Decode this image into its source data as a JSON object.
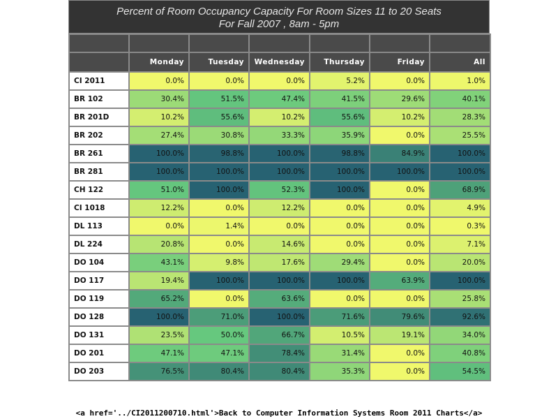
{
  "title_line1": "Percent of Room Occupancy Capacity For Room Sizes 11 to 20 Seats",
  "title_line2": "For Fall 2007  , 8am - 5pm",
  "footer_text": "<a href='../CI2011200710.html'>Back to Computer Information Systems Room 2011 Charts</a>",
  "colors": {
    "low": "#f0f86c",
    "mid": "#66c87e",
    "high": "#276272",
    "border": "#8a8a8a",
    "header_bg": "#4a4a4a",
    "title_bg": "#333333"
  },
  "chart_data": {
    "type": "heatmap",
    "title": "Percent of Room Occupancy Capacity For Room Sizes 11 to 20 Seats",
    "subtitle": "For Fall 2007  , 8am - 5pm",
    "columns": [
      "Monday",
      "Tuesday",
      "Wednesday",
      "Thursday",
      "Friday",
      "All"
    ],
    "rows": [
      {
        "room": "CI 2011",
        "values": [
          0.0,
          0.0,
          0.0,
          5.2,
          0.0,
          1.0
        ]
      },
      {
        "room": "BR 102",
        "values": [
          30.4,
          51.5,
          47.4,
          41.5,
          29.6,
          40.1
        ]
      },
      {
        "room": "BR 201D",
        "values": [
          10.2,
          55.6,
          10.2,
          55.6,
          10.2,
          28.3
        ]
      },
      {
        "room": "BR 202",
        "values": [
          27.4,
          30.8,
          33.3,
          35.9,
          0.0,
          25.5
        ]
      },
      {
        "room": "BR 261",
        "values": [
          100.0,
          98.8,
          100.0,
          98.8,
          84.9,
          100.0
        ]
      },
      {
        "room": "BR 281",
        "values": [
          100.0,
          100.0,
          100.0,
          100.0,
          100.0,
          100.0
        ]
      },
      {
        "room": "CH 122",
        "values": [
          51.0,
          100.0,
          52.3,
          100.0,
          0.0,
          68.9
        ]
      },
      {
        "room": "CI 1018",
        "values": [
          12.2,
          0.0,
          12.2,
          0.0,
          0.0,
          4.9
        ]
      },
      {
        "room": "DL 113",
        "values": [
          0.0,
          1.4,
          0.0,
          0.0,
          0.0,
          0.3
        ]
      },
      {
        "room": "DL 224",
        "values": [
          20.8,
          0.0,
          14.6,
          0.0,
          0.0,
          7.1
        ]
      },
      {
        "room": "DO 104",
        "values": [
          43.1,
          9.8,
          17.6,
          29.4,
          0.0,
          20.0
        ]
      },
      {
        "room": "DO 117",
        "values": [
          19.4,
          100.0,
          100.0,
          100.0,
          63.9,
          100.0
        ]
      },
      {
        "room": "DO 119",
        "values": [
          65.2,
          0.0,
          63.6,
          0.0,
          0.0,
          25.8
        ]
      },
      {
        "room": "DO 128",
        "values": [
          100.0,
          71.0,
          100.0,
          71.6,
          79.6,
          92.6
        ]
      },
      {
        "room": "DO 131",
        "values": [
          23.5,
          50.0,
          66.7,
          10.5,
          19.1,
          34.0
        ]
      },
      {
        "room": "DO 201",
        "values": [
          47.1,
          47.1,
          78.4,
          31.4,
          0.0,
          40.8
        ]
      },
      {
        "room": "DO 203",
        "values": [
          76.5,
          80.4,
          80.4,
          35.3,
          0.0,
          54.5
        ]
      }
    ]
  }
}
